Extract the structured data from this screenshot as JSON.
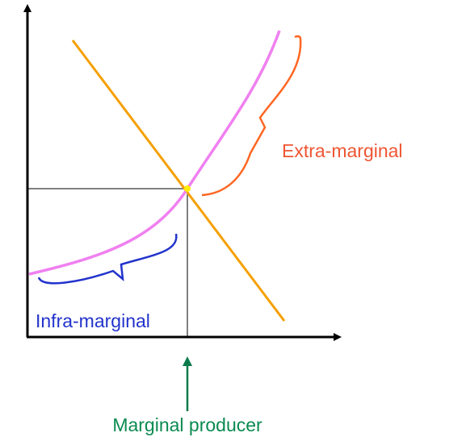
{
  "labels": {
    "extra": "Extra-marginal",
    "infra": "Infra-marginal",
    "marginal": "Marginal producer"
  }
}
